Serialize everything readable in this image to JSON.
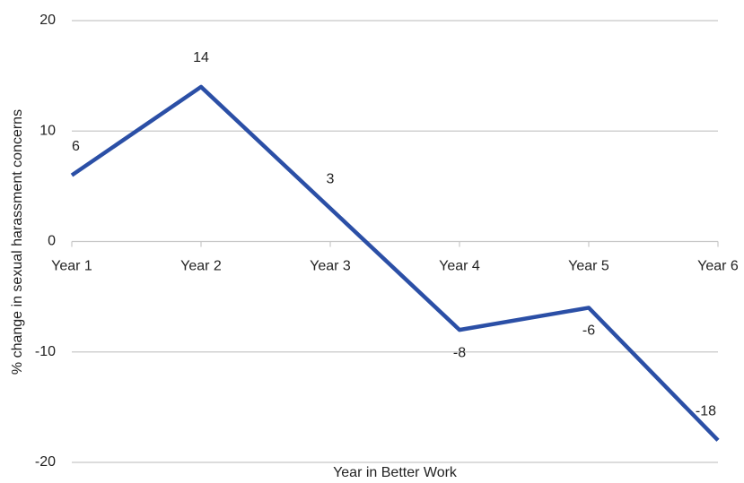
{
  "chart_data": {
    "type": "line",
    "y_label": "% change in sexual harassment concerns",
    "x_label": "Year in Better Work",
    "categories": [
      "Year 1",
      "Year 2",
      "Year 3",
      "Year 4",
      "Year 5",
      "Year 6"
    ],
    "series": [
      {
        "name": "% change",
        "color": "#2b4fa6",
        "values": [
          6,
          14,
          3,
          -8,
          -6,
          -18
        ]
      }
    ],
    "ylim": [
      -20,
      20
    ],
    "yticks": [
      -20,
      -10,
      0,
      10,
      20
    ],
    "grid": true
  }
}
